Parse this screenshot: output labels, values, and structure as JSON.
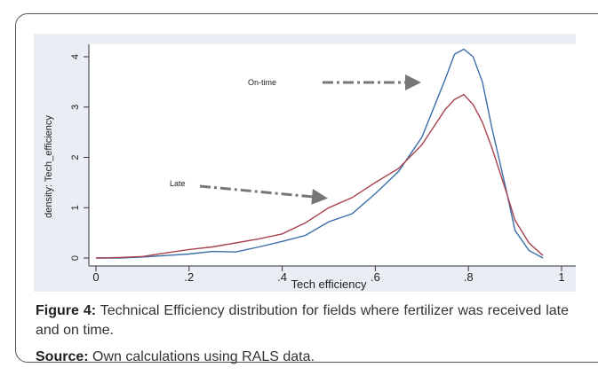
{
  "chart_data": {
    "type": "line",
    "ylabel": "density: Tech_efficiency",
    "xlabel": "Tech efficiency",
    "x": [
      0,
      0.05,
      0.1,
      0.15,
      0.2,
      0.25,
      0.3,
      0.35,
      0.4,
      0.45,
      0.5,
      0.55,
      0.6,
      0.65,
      0.7,
      0.75,
      0.77,
      0.79,
      0.81,
      0.83,
      0.85,
      0.88,
      0.9,
      0.93,
      0.96
    ],
    "series": [
      {
        "name": "On-time",
        "color": "#3b6ea8",
        "values": [
          0,
          0,
          0.02,
          0.05,
          0.08,
          0.13,
          0.12,
          0.22,
          0.33,
          0.45,
          0.72,
          0.88,
          1.28,
          1.72,
          2.4,
          3.55,
          4.05,
          4.15,
          4.0,
          3.5,
          2.6,
          1.4,
          0.55,
          0.15,
          0
        ]
      },
      {
        "name": "Late",
        "color": "#a8434f",
        "values": [
          0,
          0.01,
          0.03,
          0.1,
          0.17,
          0.22,
          0.3,
          0.38,
          0.48,
          0.7,
          1.0,
          1.2,
          1.5,
          1.78,
          2.25,
          2.95,
          3.15,
          3.25,
          3.05,
          2.7,
          2.2,
          1.35,
          0.75,
          0.3,
          0.05
        ]
      }
    ],
    "xlim": [
      0,
      1
    ],
    "ylim": [
      0,
      4
    ],
    "xticks": [
      0,
      {
        "value": 0.2,
        "label": ".2"
      },
      {
        "value": 0.4,
        "label": ".4"
      },
      {
        "value": 0.6,
        "label": ".6"
      },
      {
        "value": 0.8,
        "label": ".8"
      },
      1
    ],
    "yticks": [
      0,
      1,
      2,
      3,
      4
    ],
    "grid": false
  },
  "caption": {
    "label": "Figure 4:",
    "text": "Technical Efficiency distribution for fields where fertilizer was received late and on time."
  },
  "source": {
    "label": "Source:",
    "text": "Own calculations using RALS data."
  }
}
